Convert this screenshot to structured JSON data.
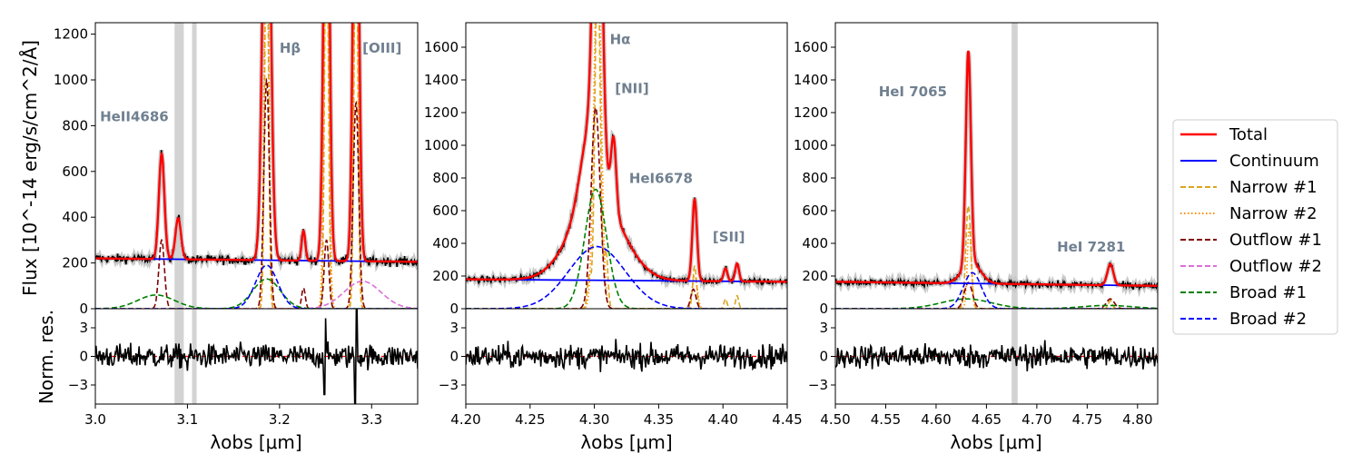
{
  "chart_data": {
    "type": "line",
    "y_title_top": "Flux [10$^{-14}$ erg/s/cm$^2$/Å]",
    "y_title_top_display": "Flux [10^-14 erg/s/cm^2/Å]",
    "y_title_bottom": "Norm. res.",
    "x_title": "λobs [μm]",
    "legend": {
      "placement": "right",
      "entries": [
        {
          "name": "Total",
          "color": "#ff0000",
          "style": "solid"
        },
        {
          "name": "Continuum",
          "color": "#0000ff",
          "style": "solid"
        },
        {
          "name": "Narrow #1",
          "color": "#daa520",
          "style": "dashed"
        },
        {
          "name": "Narrow #2",
          "color": "#ff8c00",
          "style": "dotted"
        },
        {
          "name": "Outflow #1",
          "color": "#800000",
          "style": "dashed"
        },
        {
          "name": "Outflow #2",
          "color": "#da70d6",
          "style": "dashed"
        },
        {
          "name": "Broad #1",
          "color": "#008000",
          "style": "dashed"
        },
        {
          "name": "Broad #2",
          "color": "#0000ff",
          "style": "dashed"
        }
      ]
    },
    "panels": [
      {
        "xlim": [
          3.0,
          3.35
        ],
        "ylim": [
          0,
          1250
        ],
        "xticks": [
          3.0,
          3.1,
          3.2,
          3.3
        ],
        "xtick_labels": [
          "3.0",
          "3.1",
          "3.2",
          "3.3"
        ],
        "yticks": [
          0,
          200,
          400,
          600,
          800,
          1000,
          1200
        ],
        "ytick_labels": [
          "0",
          "200",
          "400",
          "600",
          "800",
          "1000",
          "1200"
        ],
        "res_ylim": [
          -5,
          5
        ],
        "res_yticks": [
          -3,
          0,
          3
        ],
        "res_ytick_labels": [
          "−3",
          "0",
          "3"
        ],
        "masks": [
          [
            3.086,
            3.096
          ],
          [
            3.105,
            3.11
          ]
        ],
        "continuum": [
          220,
          205
        ],
        "lines": [
          {
            "label": "HeII4686",
            "x": 3.005,
            "y": 820
          },
          {
            "label": "Hβ",
            "x": 3.2,
            "y": 1120
          },
          {
            "label": "[OIII]",
            "x": 3.29,
            "y": 1120
          }
        ],
        "total_peaks": [
          {
            "x": 3.072,
            "amp": 460,
            "w": 0.003
          },
          {
            "x": 3.09,
            "amp": 180,
            "w": 0.003
          },
          {
            "x": 3.186,
            "amp": 2200,
            "w": 0.004
          },
          {
            "x": 3.226,
            "amp": 130,
            "w": 0.002
          },
          {
            "x": 3.251,
            "amp": 2200,
            "w": 0.003
          },
          {
            "x": 3.283,
            "amp": 2200,
            "w": 0.003
          }
        ],
        "components": [
          {
            "name": "Narrow #1",
            "peaks": [
              [
                3.186,
                1800,
                0.002
              ],
              [
                3.251,
                1800,
                0.002
              ],
              [
                3.283,
                1800,
                0.002
              ]
            ]
          },
          {
            "name": "Narrow #2",
            "peaks": [
              [
                3.186,
                1800,
                0.0025
              ],
              [
                3.251,
                1800,
                0.0025
              ],
              [
                3.283,
                1800,
                0.0025
              ]
            ]
          },
          {
            "name": "Outflow #1",
            "peaks": [
              [
                3.072,
                300,
                0.003
              ],
              [
                3.186,
                1000,
                0.003
              ],
              [
                3.226,
                90,
                0.002
              ],
              [
                3.251,
                300,
                0.0025
              ],
              [
                3.283,
                900,
                0.003
              ]
            ]
          },
          {
            "name": "Outflow #2",
            "peaks": [
              [
                3.29,
                120,
                0.02
              ]
            ]
          },
          {
            "name": "Broad #1",
            "peaks": [
              [
                3.066,
                60,
                0.02
              ],
              [
                3.186,
                130,
                0.015
              ]
            ]
          },
          {
            "name": "Broad #2",
            "peaks": [
              [
                3.186,
                190,
                0.012
              ]
            ]
          }
        ],
        "residual_spikes": [
          [
            3.282,
            -5
          ],
          [
            3.284,
            5
          ],
          [
            3.25,
            4
          ],
          [
            3.249,
            -4
          ],
          [
            3.1,
            -1.5
          ]
        ]
      },
      {
        "xlim": [
          4.2,
          4.45
        ],
        "ylim": [
          0,
          1750
        ],
        "xticks": [
          4.2,
          4.25,
          4.3,
          4.35,
          4.4,
          4.45
        ],
        "xtick_labels": [
          "4.20",
          "4.25",
          "4.30",
          "4.35",
          "4.40",
          "4.45"
        ],
        "yticks": [
          0,
          200,
          400,
          600,
          800,
          1000,
          1200,
          1400,
          1600
        ],
        "ytick_labels": [
          "0",
          "200",
          "400",
          "600",
          "800",
          "1000",
          "1200",
          "1400",
          "1600"
        ],
        "res_ylim": [
          -5,
          5
        ],
        "res_yticks": [
          -3,
          0,
          3
        ],
        "res_ytick_labels": [
          "−3",
          "0",
          "3"
        ],
        "masks": [],
        "continuum": [
          180,
          165
        ],
        "lines": [
          {
            "label": "Hα",
            "x": 4.312,
            "y": 1620
          },
          {
            "label": "[NII]",
            "x": 4.316,
            "y": 1320
          },
          {
            "label": "HeI6678",
            "x": 4.327,
            "y": 770
          },
          {
            "label": "[SII]",
            "x": 4.392,
            "y": 410
          }
        ],
        "total_peaks": [
          {
            "x": 4.3025,
            "amp": 2600,
            "w": 0.003
          },
          {
            "x": 4.315,
            "amp": 420,
            "w": 0.002
          },
          {
            "x": 4.298,
            "amp": 500,
            "w": 0.008
          },
          {
            "x": 4.302,
            "amp": 500,
            "w": 0.02
          },
          {
            "x": 4.378,
            "amp": 500,
            "w": 0.0018
          },
          {
            "x": 4.402,
            "amp": 80,
            "w": 0.0015
          },
          {
            "x": 4.411,
            "amp": 110,
            "w": 0.0015
          }
        ],
        "components": [
          {
            "name": "Narrow #1",
            "peaks": [
              [
                4.3025,
                2200,
                0.002
              ],
              [
                4.309,
                350,
                0.0015
              ],
              [
                4.296,
                200,
                0.0015
              ],
              [
                4.378,
                260,
                0.0015
              ],
              [
                4.402,
                60,
                0.0012
              ],
              [
                4.411,
                80,
                0.0012
              ]
            ]
          },
          {
            "name": "Narrow #2",
            "peaks": [
              [
                4.3025,
                2200,
                0.0028
              ],
              [
                4.378,
                200,
                0.002
              ]
            ]
          },
          {
            "name": "Outflow #1",
            "peaks": [
              [
                4.301,
                1230,
                0.0035
              ],
              [
                4.377,
                120,
                0.002
              ]
            ]
          },
          {
            "name": "Broad #1",
            "peaks": [
              [
                4.301,
                730,
                0.0085
              ]
            ]
          },
          {
            "name": "Broad #2",
            "peaks": [
              [
                4.302,
                380,
                0.022
              ]
            ]
          }
        ],
        "residual_spikes": []
      },
      {
        "xlim": [
          4.5,
          4.82
        ],
        "ylim": [
          0,
          1750
        ],
        "xticks": [
          4.5,
          4.55,
          4.6,
          4.65,
          4.7,
          4.75,
          4.8
        ],
        "xtick_labels": [
          "4.50",
          "4.55",
          "4.60",
          "4.65",
          "4.70",
          "4.75",
          "4.80"
        ],
        "yticks": [
          0,
          200,
          400,
          600,
          800,
          1000,
          1200,
          1400,
          1600
        ],
        "ytick_labels": [
          "0",
          "200",
          "400",
          "600",
          "800",
          "1000",
          "1200",
          "1400",
          "1600"
        ],
        "res_ylim": [
          -5,
          5
        ],
        "res_yticks": [
          -3,
          0,
          3
        ],
        "res_ytick_labels": [
          "−3",
          "0",
          "3"
        ],
        "masks": [
          [
            4.675,
            4.681
          ]
        ],
        "continuum": [
          165,
          140
        ],
        "lines": [
          {
            "label": "HeI 7065",
            "x": 4.543,
            "y": 1300
          },
          {
            "label": "HeI 7281",
            "x": 4.72,
            "y": 350
          }
        ],
        "total_peaks": [
          {
            "x": 4.632,
            "amp": 1300,
            "w": 0.0025
          },
          {
            "x": 4.635,
            "amp": 130,
            "w": 0.009
          },
          {
            "x": 4.773,
            "amp": 130,
            "w": 0.003
          }
        ],
        "components": [
          {
            "name": "Narrow #1",
            "peaks": [
              [
                4.632,
                630,
                0.0025
              ],
              [
                4.773,
                50,
                0.002
              ]
            ]
          },
          {
            "name": "Narrow #2",
            "peaks": [
              [
                4.633,
                500,
                0.002
              ]
            ]
          },
          {
            "name": "Outflow #1",
            "peaks": [
              [
                4.632,
                160,
                0.004
              ],
              [
                4.773,
                60,
                0.004
              ]
            ]
          },
          {
            "name": "Broad #1",
            "peaks": [
              [
                4.63,
                60,
                0.025
              ],
              [
                4.77,
                20,
                0.025
              ]
            ]
          },
          {
            "name": "Broad #2",
            "peaks": [
              [
                4.636,
                220,
                0.009
              ]
            ]
          }
        ],
        "residual_spikes": []
      }
    ]
  }
}
